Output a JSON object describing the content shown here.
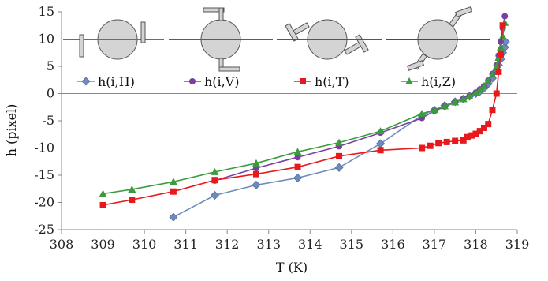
{
  "chart_data": {
    "type": "line",
    "xlabel": "T (K)",
    "ylabel": "h (pixel)",
    "xlim": [
      308,
      319
    ],
    "ylim": [
      -25,
      15
    ],
    "xticks": [
      308,
      309,
      310,
      311,
      312,
      313,
      314,
      315,
      316,
      317,
      318,
      319
    ],
    "yticks": [
      15,
      10,
      5,
      0,
      -5,
      -10,
      -15,
      -20,
      -25
    ],
    "grid": false,
    "legend_position": "top",
    "series": [
      {
        "name": "h(i,H)",
        "color": "#6d8bbd",
        "marker": "diamond",
        "x": [
          310.7,
          311.7,
          312.7,
          313.7,
          314.7,
          315.7,
          316.7,
          317.0,
          317.25,
          317.5,
          317.7,
          317.85,
          318.0,
          318.1,
          318.2,
          318.3,
          318.4,
          318.5,
          318.55,
          318.6,
          318.65,
          318.7,
          318.72
        ],
        "y": [
          -22.7,
          -18.7,
          -16.8,
          -15.5,
          -13.6,
          -9.2,
          -4.0,
          -3.0,
          -2.2,
          -1.5,
          -1.0,
          -0.5,
          0.0,
          0.4,
          1.0,
          1.8,
          2.8,
          4.2,
          5.2,
          6.3,
          7.5,
          8.5,
          9.5
        ]
      },
      {
        "name": "h(i,V)",
        "color": "#7b3fa0",
        "marker": "circle",
        "x": [
          311.7,
          312.7,
          313.7,
          314.7,
          315.7,
          316.7,
          317.0,
          317.25,
          317.5,
          317.7,
          317.85,
          318.0,
          318.1,
          318.2,
          318.3,
          318.4,
          318.5,
          318.55,
          318.6,
          318.65,
          318.7
        ],
        "y": [
          -16.0,
          -13.7,
          -11.7,
          -9.7,
          -7.2,
          -4.5,
          -3.2,
          -2.4,
          -1.6,
          -0.9,
          -0.4,
          0.2,
          0.8,
          1.4,
          2.4,
          3.6,
          5.2,
          7.0,
          9.5,
          12.0,
          14.2
        ]
      },
      {
        "name": "h(i,T)",
        "color": "#e8191c",
        "marker": "square",
        "x": [
          309.0,
          309.7,
          310.7,
          311.7,
          312.7,
          313.7,
          314.7,
          315.7,
          316.7,
          316.9,
          317.1,
          317.3,
          317.5,
          317.7,
          317.8,
          317.9,
          318.0,
          318.1,
          318.2,
          318.3,
          318.4,
          318.5,
          318.55,
          318.6,
          318.65
        ],
        "y": [
          -20.5,
          -19.5,
          -18.0,
          -15.9,
          -14.8,
          -13.5,
          -11.5,
          -10.4,
          -10.0,
          -9.6,
          -9.1,
          -8.9,
          -8.7,
          -8.6,
          -8.0,
          -7.7,
          -7.4,
          -6.9,
          -6.3,
          -5.6,
          -3.0,
          0.0,
          4.0,
          7.2,
          12.5
        ]
      },
      {
        "name": "h(i,Z)",
        "color": "#3a9c3e",
        "marker": "triangle",
        "x": [
          309.0,
          309.7,
          310.7,
          311.7,
          312.7,
          313.7,
          314.7,
          315.7,
          316.7,
          317.0,
          317.25,
          317.5,
          317.7,
          317.85,
          318.0,
          318.1,
          318.2,
          318.3,
          318.4,
          318.5,
          318.55,
          318.6,
          318.65,
          318.7
        ],
        "y": [
          -18.4,
          -17.6,
          -16.2,
          -14.4,
          -12.8,
          -10.7,
          -9.0,
          -6.9,
          -3.7,
          -3.0,
          -2.3,
          -1.6,
          -1.0,
          -0.5,
          0.1,
          0.7,
          1.4,
          2.4,
          3.5,
          5.0,
          6.6,
          8.5,
          10.5,
          13.0
        ]
      }
    ],
    "insets": [
      {
        "name": "horizontal-probe",
        "line_color": "#2f7bbf"
      },
      {
        "name": "vertical-probe",
        "line_color": "#7b3fa0"
      },
      {
        "name": "tilted-probe",
        "line_color": "#e8191c"
      },
      {
        "name": "tilted-probe-z",
        "line_color": "#1f6a1f"
      }
    ]
  }
}
